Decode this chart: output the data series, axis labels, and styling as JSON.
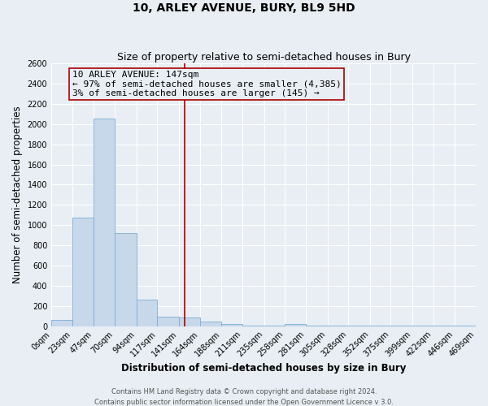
{
  "title": "10, ARLEY AVENUE, BURY, BL9 5HD",
  "subtitle": "Size of property relative to semi-detached houses in Bury",
  "xlabel": "Distribution of semi-detached houses by size in Bury",
  "ylabel": "Number of semi-detached properties",
  "bar_edges": [
    0,
    23,
    47,
    70,
    94,
    117,
    141,
    164,
    188,
    211,
    235,
    258,
    281,
    305,
    328,
    352,
    375,
    399,
    422,
    446,
    469
  ],
  "bar_heights": [
    60,
    1075,
    2055,
    920,
    265,
    95,
    85,
    45,
    20,
    5,
    5,
    20,
    5,
    5,
    5,
    5,
    5,
    5,
    5,
    5
  ],
  "bar_color": "#c8d8eb",
  "bar_edgecolor": "#7aaed4",
  "property_value": 147,
  "vline_color": "#aa0000",
  "annotation_box_edgecolor": "#aa0000",
  "annotation_title": "10 ARLEY AVENUE: 147sqm",
  "annotation_line1": "← 97% of semi-detached houses are smaller (4,385)",
  "annotation_line2": "3% of semi-detached houses are larger (145) →",
  "ylim": [
    0,
    2600
  ],
  "yticks": [
    0,
    200,
    400,
    600,
    800,
    1000,
    1200,
    1400,
    1600,
    1800,
    2000,
    2200,
    2400,
    2600
  ],
  "tick_labels": [
    "0sqm",
    "23sqm",
    "47sqm",
    "70sqm",
    "94sqm",
    "117sqm",
    "141sqm",
    "164sqm",
    "188sqm",
    "211sqm",
    "235sqm",
    "258sqm",
    "281sqm",
    "305sqm",
    "328sqm",
    "352sqm",
    "375sqm",
    "399sqm",
    "422sqm",
    "446sqm",
    "469sqm"
  ],
  "footer1": "Contains HM Land Registry data © Crown copyright and database right 2024.",
  "footer2": "Contains public sector information licensed under the Open Government Licence v 3.0.",
  "background_color": "#e8eef4",
  "grid_color": "#ffffff",
  "title_fontsize": 10,
  "subtitle_fontsize": 9,
  "axis_label_fontsize": 8.5,
  "tick_fontsize": 7,
  "footer_fontsize": 6,
  "annotation_fontsize": 8
}
